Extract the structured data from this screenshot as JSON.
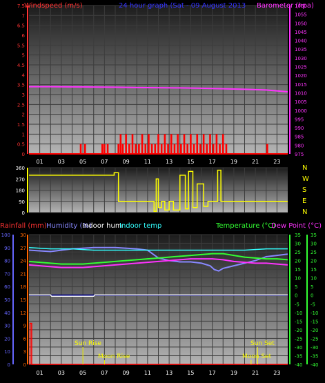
{
  "header": {
    "windspeed_label": "Windspeed (m/s)",
    "graph_title": "24 hour graph (Sat - 09 August 2013",
    "barometer_label": "Barometer (hpa)"
  },
  "footer_labels": {
    "rainfall": "Rainfall (mm)",
    "humidity": "Humidity (%)",
    "indoor_hum": "Indoor hum",
    "indoor_temp": "Indoor temp",
    "temperature": "Temperature (°C)",
    "dew_point": "Dew Point (°C)"
  },
  "astro": {
    "sun_rise": "Sun Rise",
    "moon_rise": "Moon Rise",
    "sun_set": "Sun Set",
    "moon_set": "Moon Set",
    "sun_rise_hour": 5.0,
    "moon_rise_hour": 7.0,
    "sun_set_hour": 21.2,
    "moon_set_hour": 20.6
  },
  "colors": {
    "wind": "#ff0000",
    "barometer": "#ff33ff",
    "title": "#3333ff",
    "direction": "#ffff00",
    "rain": "#ff0000",
    "humidity": "#8888ff",
    "indoor_hum": "#ffffff",
    "indoor_temp": "#33ffff",
    "temperature": "#33ff33",
    "dew_point": "#ff33ff",
    "axis_left": "#ff3333",
    "axis_right": "#ff33ff",
    "axis_green": "#33ff33",
    "axis_blue": "#6666ff",
    "axis_orange": "#ff6600"
  },
  "chart_data": [
    {
      "type": "line",
      "xlabel": "",
      "x_ticks": [
        "01",
        "03",
        "05",
        "07",
        "09",
        "11",
        "13",
        "15",
        "17",
        "19",
        "21",
        "23"
      ],
      "y_left_label": "Windspeed (m/s)",
      "y_left_ticks": [
        "0",
        "0.5",
        "1",
        "1.5",
        "2",
        "2.5",
        "3",
        "3.5",
        "4",
        "4.5",
        "5",
        "5.5",
        "6",
        "6.5",
        "7",
        "7.5"
      ],
      "ylim_left": [
        0,
        7.5
      ],
      "y_right_label": "Barometer (hpa)",
      "y_right_ticks": [
        "975",
        "980",
        "985",
        "990",
        "995",
        "1000",
        "1005",
        "1010",
        "1015",
        "1020",
        "1025",
        "1030",
        "1035",
        "1040",
        "1045",
        "1050",
        "1055",
        "1060"
      ],
      "ylim_right": [
        975,
        1060
      ],
      "series": [
        {
          "name": "Barometer (hpa)",
          "axis": "right",
          "x": [
            0,
            2,
            4,
            6,
            8,
            10,
            12,
            14,
            16,
            18,
            20,
            22,
            24
          ],
          "values": [
            1013.5,
            1013.5,
            1013.4,
            1013.3,
            1013.2,
            1013.0,
            1012.9,
            1012.8,
            1012.6,
            1012.3,
            1012.0,
            1011.6,
            1010.6
          ]
        },
        {
          "name": "Windspeed (m/s)",
          "axis": "left",
          "x": [
            4.8,
            5.2,
            6.8,
            7.0,
            7.3,
            8.3,
            8.5,
            8.7,
            9.0,
            9.3,
            9.6,
            9.9,
            10.2,
            10.5,
            10.8,
            11.1,
            11.4,
            11.7,
            12.0,
            12.3,
            12.6,
            12.9,
            13.2,
            13.5,
            13.8,
            14.1,
            14.4,
            14.7,
            15.0,
            15.3,
            15.6,
            15.9,
            16.2,
            16.5,
            16.8,
            17.1,
            17.4,
            17.7,
            18.0,
            18.3,
            22.1
          ],
          "values": [
            0.5,
            0.5,
            0.5,
            0.5,
            0.5,
            0.5,
            1.0,
            0.5,
            1.0,
            0.5,
            1.0,
            0.5,
            0.5,
            1.0,
            0.5,
            1.0,
            0.5,
            0.5,
            1.0,
            0.5,
            1.0,
            0.5,
            1.0,
            0.5,
            1.0,
            0.5,
            1.0,
            0.5,
            1.0,
            0.5,
            1.0,
            0.5,
            1.0,
            0.5,
            1.0,
            0.5,
            1.0,
            0.5,
            1.0,
            0.5,
            0.5
          ]
        }
      ]
    },
    {
      "type": "line",
      "y_ticks": [
        "0",
        "90",
        "180",
        "270",
        "360"
      ],
      "ylim": [
        0,
        360
      ],
      "compass": [
        "N",
        "W",
        "S",
        "E",
        "N"
      ],
      "series": [
        {
          "name": "Wind direction",
          "x": [
            0,
            7.9,
            7.9,
            8.3,
            8.3,
            11.6,
            11.6,
            11.8,
            11.8,
            12.0,
            12.0,
            12.3,
            12.3,
            12.6,
            12.6,
            13.0,
            13.0,
            13.4,
            13.4,
            14.0,
            14.0,
            14.5,
            14.5,
            14.8,
            14.8,
            15.2,
            15.2,
            15.6,
            15.6,
            16.2,
            16.2,
            16.6,
            16.6,
            17.5,
            17.5,
            17.8,
            17.8,
            24
          ],
          "values": [
            300,
            300,
            320,
            320,
            90,
            90,
            10,
            10,
            270,
            270,
            40,
            40,
            90,
            90,
            20,
            20,
            90,
            90,
            20,
            20,
            300,
            300,
            30,
            30,
            330,
            330,
            40,
            40,
            230,
            230,
            50,
            50,
            90,
            90,
            340,
            340,
            90,
            90
          ]
        }
      ]
    },
    {
      "type": "line",
      "y_humidity_ticks": [
        "0",
        "10",
        "20",
        "30",
        "40",
        "50",
        "60",
        "70",
        "80",
        "90",
        "100"
      ],
      "ylim_humidity": [
        0,
        100
      ],
      "y_rain_ticks": [
        "0",
        "3",
        "6",
        "9",
        "12",
        "15",
        "18",
        "21",
        "24",
        "27",
        "30"
      ],
      "ylim_rain": [
        0,
        30
      ],
      "y_temp_ticks": [
        "-40",
        "-35",
        "-30",
        "-25",
        "-20",
        "-15",
        "-10",
        "-5",
        "0",
        "5",
        "10",
        "15",
        "20",
        "25",
        "30",
        "35"
      ],
      "ylim_temp": [
        -40,
        35
      ],
      "series": [
        {
          "name": "Humidity (%)",
          "axis": "humidity",
          "x": [
            0,
            2,
            4,
            6,
            8,
            10,
            11,
            12,
            13,
            14,
            15,
            16,
            16.8,
            17.2,
            17.6,
            18.0,
            19,
            20,
            21,
            22,
            23,
            24
          ],
          "values": [
            88,
            87,
            89,
            90,
            90,
            89,
            88,
            82,
            80,
            79,
            79,
            78,
            76,
            73,
            72,
            74,
            76,
            78,
            80,
            83,
            84,
            85
          ]
        },
        {
          "name": "Indoor temp",
          "axis": "humidity",
          "x": [
            0,
            2,
            4,
            6,
            8,
            10,
            12,
            14,
            16,
            18,
            20,
            22,
            24
          ],
          "values": [
            90,
            89,
            89,
            88,
            88,
            88,
            88,
            88,
            88,
            88,
            88,
            89,
            89
          ]
        },
        {
          "name": "Indoor hum",
          "axis": "humidity",
          "x": [
            0,
            2,
            2.1,
            6,
            6.1,
            10.5,
            10.6,
            24
          ],
          "values": [
            53.5,
            53.5,
            52.5,
            52.5,
            53.5,
            53.5,
            53.5,
            53.5
          ]
        },
        {
          "name": "Temperature (°C)",
          "axis": "temp",
          "x": [
            0,
            1,
            2,
            3,
            4,
            5,
            6,
            7,
            8,
            9,
            10,
            11,
            12,
            13,
            14,
            15,
            16,
            17,
            18,
            19,
            20,
            21,
            22,
            23,
            24
          ],
          "values": [
            19.5,
            19,
            18.5,
            18,
            18,
            18,
            18.5,
            19,
            19.5,
            20,
            20.5,
            21,
            21.5,
            22,
            22.5,
            23,
            23.5,
            24,
            24,
            23,
            22,
            21.5,
            21,
            21,
            20.5
          ]
        },
        {
          "name": "Dew Point (°C)",
          "axis": "temp",
          "x": [
            0,
            1,
            2,
            3,
            4,
            5,
            6,
            7,
            8,
            9,
            10,
            11,
            12,
            13,
            14,
            15,
            16,
            17,
            18,
            19,
            20,
            21,
            22,
            23,
            24
          ],
          "values": [
            17.5,
            17,
            16.5,
            16,
            16,
            16,
            16.5,
            17,
            17.5,
            18,
            18.5,
            19,
            19.5,
            20,
            20.5,
            21,
            21,
            21,
            20.5,
            19.5,
            19,
            18.5,
            18.5,
            18,
            17.5
          ]
        },
        {
          "name": "Rainfall (mm)",
          "axis": "rain",
          "x": [
            0,
            0.1,
            0.1,
            0.25,
            0.25,
            24
          ],
          "values": [
            0,
            0,
            9.5,
            9.5,
            0,
            0
          ]
        }
      ]
    }
  ]
}
